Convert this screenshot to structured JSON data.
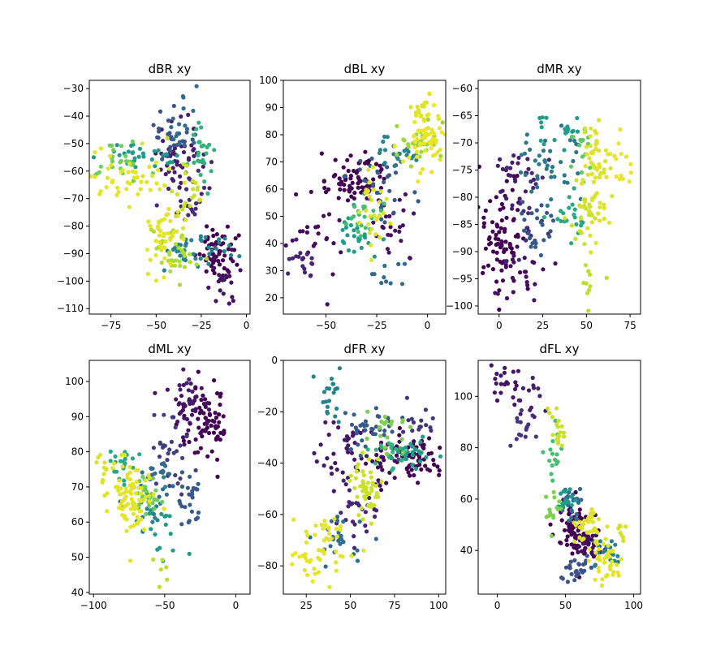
{
  "figure": {
    "background": "#ffffff"
  },
  "colormap": {
    "name": "viridis",
    "stops": [
      "#440154",
      "#482878",
      "#3e4a89",
      "#31688e",
      "#26828e",
      "#1f9e89",
      "#35b779",
      "#6ece58",
      "#b5de2b",
      "#fde725"
    ]
  },
  "chart_data": [
    {
      "type": "scatter",
      "title": "dBR xy",
      "xlim": [
        -87,
        2
      ],
      "ylim": [
        -112,
        -27
      ],
      "xticks": [
        -75,
        -50,
        -25,
        0
      ],
      "xtick_labels": [
        "−75",
        "−50",
        "−25",
        "0"
      ],
      "yticks": [
        -110,
        -100,
        -90,
        -80,
        -70,
        -60,
        -50,
        -40,
        -30
      ],
      "ytick_labels": [
        "−110",
        "−100",
        "−90",
        "−80",
        "−70",
        "−60",
        "−50",
        "−40",
        "−30"
      ],
      "color_mapping": "viridis (dark purple → yellow)",
      "clusters": [
        {
          "t": 0.0,
          "x": -15,
          "y": -90,
          "sx": 6,
          "sy": 5,
          "n": 60
        },
        {
          "t": 0.05,
          "x": -14,
          "y": -101,
          "sx": 3,
          "sy": 4,
          "n": 18
        },
        {
          "t": 0.08,
          "x": -37,
          "y": -55,
          "sx": 7,
          "sy": 8,
          "n": 55
        },
        {
          "t": 0.12,
          "x": -30,
          "y": -70,
          "sx": 5,
          "sy": 6,
          "n": 25
        },
        {
          "t": 0.25,
          "x": -42,
          "y": -48,
          "sx": 5,
          "sy": 6,
          "n": 25
        },
        {
          "t": 0.35,
          "x": -35,
          "y": -45,
          "sx": 4,
          "sy": 6,
          "n": 18
        },
        {
          "t": 0.45,
          "x": -28,
          "y": -88,
          "sx": 9,
          "sy": 3,
          "n": 40
        },
        {
          "t": 0.55,
          "x": -55,
          "y": -54,
          "sx": 12,
          "sy": 3,
          "n": 30
        },
        {
          "t": 0.65,
          "x": -25,
          "y": -55,
          "sx": 4,
          "sy": 6,
          "n": 25
        },
        {
          "t": 0.78,
          "x": -70,
          "y": -57,
          "sx": 6,
          "sy": 4,
          "n": 25
        },
        {
          "t": 0.88,
          "x": -40,
          "y": -90,
          "sx": 6,
          "sy": 5,
          "n": 35
        },
        {
          "t": 0.96,
          "x": -68,
          "y": -62,
          "sx": 12,
          "sy": 5,
          "n": 50
        },
        {
          "t": 0.96,
          "x": -45,
          "y": -83,
          "sx": 5,
          "sy": 6,
          "n": 45
        },
        {
          "t": 0.92,
          "x": -32,
          "y": -67,
          "sx": 4,
          "sy": 6,
          "n": 20
        }
      ]
    },
    {
      "type": "scatter",
      "title": "dBL xy",
      "xlim": [
        -71,
        9
      ],
      "ylim": [
        14,
        100
      ],
      "xticks": [
        -50,
        -25,
        0
      ],
      "xtick_labels": [
        "−50",
        "−25",
        "0"
      ],
      "yticks": [
        20,
        30,
        40,
        50,
        60,
        70,
        80,
        90,
        100
      ],
      "ytick_labels": [
        "20",
        "30",
        "40",
        "50",
        "60",
        "70",
        "80",
        "90",
        "100"
      ],
      "color_mapping": "viridis (dark purple → yellow)",
      "clusters": [
        {
          "t": 0.0,
          "x": -35,
          "y": 63,
          "sx": 7,
          "sy": 5,
          "n": 70
        },
        {
          "t": 0.03,
          "x": -55,
          "y": 45,
          "sx": 8,
          "sy": 10,
          "n": 30
        },
        {
          "t": 0.05,
          "x": -15,
          "y": 45,
          "sx": 5,
          "sy": 8,
          "n": 25
        },
        {
          "t": 0.1,
          "x": -62,
          "y": 33,
          "sx": 5,
          "sy": 3,
          "n": 15
        },
        {
          "t": 0.28,
          "x": -22,
          "y": 62,
          "sx": 8,
          "sy": 6,
          "n": 35
        },
        {
          "t": 0.35,
          "x": -20,
          "y": 27,
          "sx": 4,
          "sy": 4,
          "n": 10
        },
        {
          "t": 0.45,
          "x": -15,
          "y": 74,
          "sx": 6,
          "sy": 3,
          "n": 25
        },
        {
          "t": 0.55,
          "x": -35,
          "y": 44,
          "sx": 6,
          "sy": 6,
          "n": 25
        },
        {
          "t": 0.7,
          "x": -30,
          "y": 50,
          "sx": 6,
          "sy": 5,
          "n": 20
        },
        {
          "t": 0.85,
          "x": -5,
          "y": 78,
          "sx": 7,
          "sy": 4,
          "n": 30
        },
        {
          "t": 0.97,
          "x": 0,
          "y": 80,
          "sx": 6,
          "sy": 6,
          "n": 60
        },
        {
          "t": 0.95,
          "x": -27,
          "y": 52,
          "sx": 3,
          "sy": 8,
          "n": 30
        },
        {
          "t": 0.95,
          "x": -5,
          "y": 90,
          "sx": 3,
          "sy": 3,
          "n": 12
        }
      ]
    },
    {
      "type": "scatter",
      "title": "dMR xy",
      "xlim": [
        -12,
        81
      ],
      "ylim": [
        -101.5,
        -58.5
      ],
      "xticks": [
        0,
        25,
        50,
        75
      ],
      "xtick_labels": [
        "0",
        "25",
        "50",
        "75"
      ],
      "yticks": [
        -100,
        -95,
        -90,
        -85,
        -80,
        -75,
        -70,
        -65,
        -60
      ],
      "ytick_labels": [
        "−100",
        "−95",
        "−90",
        "−85",
        "−80",
        "−75",
        "−70",
        "−65",
        "−60"
      ],
      "color_mapping": "viridis (dark purple → yellow)",
      "clusters": [
        {
          "t": 0.0,
          "x": 2,
          "y": -88,
          "sx": 6,
          "sy": 6,
          "n": 80
        },
        {
          "t": 0.04,
          "x": 12,
          "y": -93,
          "sx": 6,
          "sy": 3,
          "n": 25
        },
        {
          "t": 0.08,
          "x": 8,
          "y": -77,
          "sx": 5,
          "sy": 3,
          "n": 25
        },
        {
          "t": 0.12,
          "x": 20,
          "y": -82,
          "sx": 6,
          "sy": 5,
          "n": 20
        },
        {
          "t": 0.28,
          "x": 22,
          "y": -86,
          "sx": 6,
          "sy": 3,
          "n": 25
        },
        {
          "t": 0.4,
          "x": 30,
          "y": -74,
          "sx": 9,
          "sy": 4,
          "n": 40
        },
        {
          "t": 0.55,
          "x": 35,
          "y": -68,
          "sx": 8,
          "sy": 2,
          "n": 20
        },
        {
          "t": 0.6,
          "x": 40,
          "y": -84,
          "sx": 5,
          "sy": 3,
          "n": 20
        },
        {
          "t": 0.75,
          "x": 48,
          "y": -70,
          "sx": 5,
          "sy": 3,
          "n": 15
        },
        {
          "t": 0.95,
          "x": 55,
          "y": -76,
          "sx": 4,
          "sy": 6,
          "n": 70
        },
        {
          "t": 0.97,
          "x": 70,
          "y": -74,
          "sx": 5,
          "sy": 3,
          "n": 15
        },
        {
          "t": 0.92,
          "x": 50,
          "y": -83,
          "sx": 5,
          "sy": 3,
          "n": 20
        },
        {
          "t": 0.9,
          "x": 52,
          "y": -95,
          "sx": 4,
          "sy": 3,
          "n": 10
        }
      ]
    },
    {
      "type": "scatter",
      "title": "dML xy",
      "xlim": [
        -103,
        10
      ],
      "ylim": [
        39.5,
        106
      ],
      "xticks": [
        -100,
        -50,
        0
      ],
      "xtick_labels": [
        "−100",
        "−50",
        "0"
      ],
      "yticks": [
        40,
        50,
        60,
        70,
        80,
        90,
        100
      ],
      "ytick_labels": [
        "40",
        "50",
        "60",
        "70",
        "80",
        "90",
        "100"
      ],
      "color_mapping": "viridis (dark purple → yellow)",
      "clusters": [
        {
          "t": 0.0,
          "x": -20,
          "y": 88,
          "sx": 8,
          "sy": 5,
          "n": 70
        },
        {
          "t": 0.05,
          "x": -35,
          "y": 92,
          "sx": 8,
          "sy": 4,
          "n": 40
        },
        {
          "t": 0.08,
          "x": -35,
          "y": 99,
          "sx": 3,
          "sy": 2,
          "n": 10
        },
        {
          "t": 0.18,
          "x": -45,
          "y": 80,
          "sx": 7,
          "sy": 5,
          "n": 30
        },
        {
          "t": 0.28,
          "x": -33,
          "y": 67,
          "sx": 5,
          "sy": 4,
          "n": 25
        },
        {
          "t": 0.35,
          "x": -55,
          "y": 73,
          "sx": 6,
          "sy": 3,
          "n": 20
        },
        {
          "t": 0.45,
          "x": -62,
          "y": 66,
          "sx": 7,
          "sy": 4,
          "n": 25
        },
        {
          "t": 0.55,
          "x": -50,
          "y": 56,
          "sx": 8,
          "sy": 4,
          "n": 15
        },
        {
          "t": 0.6,
          "x": -80,
          "y": 76,
          "sx": 6,
          "sy": 3,
          "n": 20
        },
        {
          "t": 0.78,
          "x": -60,
          "y": 68,
          "sx": 6,
          "sy": 3,
          "n": 25
        },
        {
          "t": 0.96,
          "x": -72,
          "y": 67,
          "sx": 8,
          "sy": 5,
          "n": 80
        },
        {
          "t": 0.95,
          "x": -92,
          "y": 75,
          "sx": 5,
          "sy": 3,
          "n": 15
        },
        {
          "t": 0.9,
          "x": -52,
          "y": 47,
          "sx": 3,
          "sy": 2,
          "n": 6
        }
      ]
    },
    {
      "type": "scatter",
      "title": "dFR xy",
      "xlim": [
        12,
        104
      ],
      "ylim": [
        -91,
        0
      ],
      "xticks": [
        25,
        50,
        75,
        100
      ],
      "xtick_labels": [
        "25",
        "50",
        "75",
        "100"
      ],
      "yticks": [
        -80,
        -60,
        -40,
        -20,
        0
      ],
      "ytick_labels": [
        "−80",
        "−60",
        "−40",
        "−20",
        "0"
      ],
      "color_mapping": "viridis (dark purple → yellow)",
      "clusters": [
        {
          "t": 0.0,
          "x": 85,
          "y": -38,
          "sx": 8,
          "sy": 5,
          "n": 60
        },
        {
          "t": 0.03,
          "x": 70,
          "y": -40,
          "sx": 6,
          "sy": 6,
          "n": 30
        },
        {
          "t": 0.06,
          "x": 45,
          "y": -35,
          "sx": 8,
          "sy": 6,
          "n": 40
        },
        {
          "t": 0.1,
          "x": 55,
          "y": -60,
          "sx": 6,
          "sy": 5,
          "n": 25
        },
        {
          "t": 0.15,
          "x": 88,
          "y": -24,
          "sx": 5,
          "sy": 3,
          "n": 15
        },
        {
          "t": 0.28,
          "x": 60,
          "y": -26,
          "sx": 8,
          "sy": 5,
          "n": 35
        },
        {
          "t": 0.35,
          "x": 45,
          "y": -68,
          "sx": 6,
          "sy": 6,
          "n": 25
        },
        {
          "t": 0.45,
          "x": 38,
          "y": -15,
          "sx": 3,
          "sy": 6,
          "n": 20
        },
        {
          "t": 0.55,
          "x": 85,
          "y": -36,
          "sx": 6,
          "sy": 3,
          "n": 25
        },
        {
          "t": 0.65,
          "x": 72,
          "y": -36,
          "sx": 6,
          "sy": 3,
          "n": 20
        },
        {
          "t": 0.8,
          "x": 70,
          "y": -27,
          "sx": 8,
          "sy": 4,
          "n": 20
        },
        {
          "t": 0.92,
          "x": 60,
          "y": -50,
          "sx": 4,
          "sy": 6,
          "n": 50
        },
        {
          "t": 0.96,
          "x": 35,
          "y": -72,
          "sx": 8,
          "sy": 7,
          "n": 40
        },
        {
          "t": 0.97,
          "x": 25,
          "y": -80,
          "sx": 4,
          "sy": 3,
          "n": 12
        }
      ]
    },
    {
      "type": "scatter",
      "title": "dFL xy",
      "xlim": [
        -14,
        105
      ],
      "ylim": [
        23,
        114
      ],
      "xticks": [
        0,
        50,
        100
      ],
      "xtick_labels": [
        "0",
        "50",
        "100"
      ],
      "yticks": [
        40,
        60,
        80,
        100
      ],
      "ytick_labels": [
        "40",
        "60",
        "80",
        "100"
      ],
      "color_mapping": "viridis (dark purple → yellow)",
      "clusters": [
        {
          "t": 0.0,
          "x": 55,
          "y": 48,
          "sx": 6,
          "sy": 5,
          "n": 70
        },
        {
          "t": 0.03,
          "x": 68,
          "y": 42,
          "sx": 5,
          "sy": 4,
          "n": 35
        },
        {
          "t": 0.05,
          "x": 5,
          "y": 105,
          "sx": 6,
          "sy": 4,
          "n": 20
        },
        {
          "t": 0.08,
          "x": 25,
          "y": 98,
          "sx": 5,
          "sy": 4,
          "n": 15
        },
        {
          "t": 0.15,
          "x": 20,
          "y": 88,
          "sx": 5,
          "sy": 4,
          "n": 15
        },
        {
          "t": 0.25,
          "x": 60,
          "y": 33,
          "sx": 8,
          "sy": 3,
          "n": 25
        },
        {
          "t": 0.35,
          "x": 55,
          "y": 58,
          "sx": 5,
          "sy": 3,
          "n": 25
        },
        {
          "t": 0.45,
          "x": 80,
          "y": 40,
          "sx": 5,
          "sy": 4,
          "n": 20
        },
        {
          "t": 0.55,
          "x": 50,
          "y": 60,
          "sx": 4,
          "sy": 2,
          "n": 15
        },
        {
          "t": 0.7,
          "x": 40,
          "y": 75,
          "sx": 4,
          "sy": 5,
          "n": 15
        },
        {
          "t": 0.8,
          "x": 40,
          "y": 55,
          "sx": 5,
          "sy": 4,
          "n": 15
        },
        {
          "t": 0.96,
          "x": 80,
          "y": 35,
          "sx": 5,
          "sy": 5,
          "n": 40
        },
        {
          "t": 0.95,
          "x": 68,
          "y": 50,
          "sx": 5,
          "sy": 4,
          "n": 30
        },
        {
          "t": 0.92,
          "x": 45,
          "y": 85,
          "sx": 3,
          "sy": 5,
          "n": 20
        },
        {
          "t": 0.94,
          "x": 92,
          "y": 47,
          "sx": 3,
          "sy": 2,
          "n": 8
        }
      ]
    }
  ]
}
